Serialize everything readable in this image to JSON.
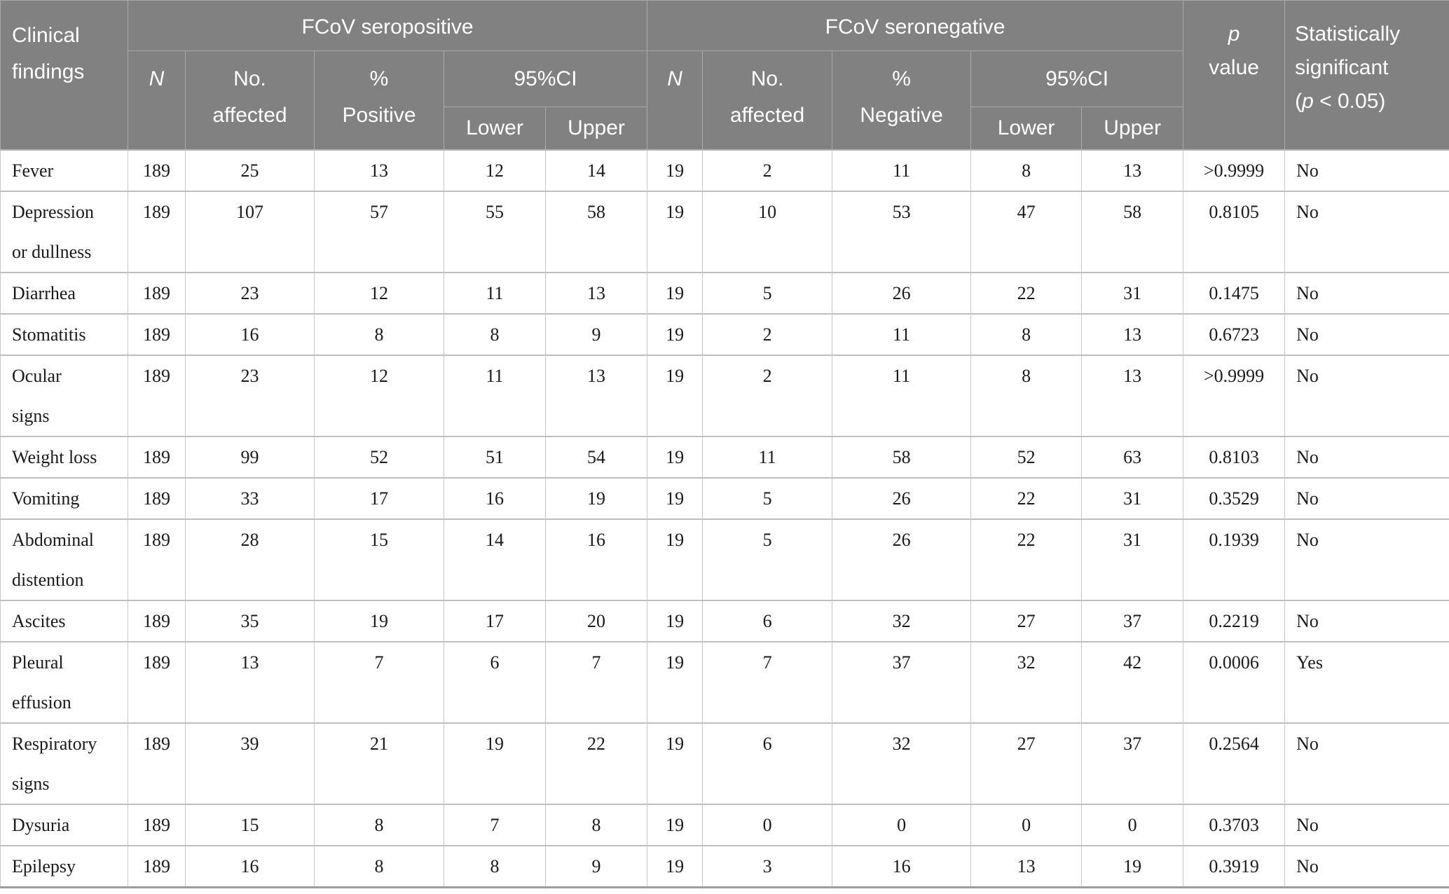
{
  "colors": {
    "header_bg": "#818181",
    "header_text": "#ffffff",
    "header_grid": "#a9a9a9",
    "body_text": "#1a1a1a",
    "body_grid": "#c9c9c9",
    "table_bottom_edge": "#9e9e9e"
  },
  "table": {
    "header": {
      "clinical_findings": "Clinical\nfindings",
      "fcov_seropositive": "FCoV seropositive",
      "fcov_seronegative": "FCoV seronegative",
      "n": "N",
      "no_affected": "No.\naffected",
      "pct_positive": "%\nPositive",
      "pct_negative": "%\nNegative",
      "ci": "95%CI",
      "lower": "Lower",
      "upper": "Upper",
      "p_italic": "p",
      "p_value_word": "value",
      "sig_line1": "Statistically",
      "sig_line2": "significant",
      "sig_open": "(",
      "sig_p": "p",
      "sig_rest": " < 0.05)"
    },
    "rows": [
      {
        "label": "Fever",
        "values": [
          "189",
          "25",
          "13",
          "12",
          "14",
          "19",
          "2",
          "11",
          "8",
          "13",
          ">0.9999",
          "No"
        ]
      },
      {
        "label": "Depression\nor dullness",
        "values": [
          "189",
          "107",
          "57",
          "55",
          "58",
          "19",
          "10",
          "53",
          "47",
          "58",
          "0.8105",
          "No"
        ]
      },
      {
        "label": "Diarrhea",
        "values": [
          "189",
          "23",
          "12",
          "11",
          "13",
          "19",
          "5",
          "26",
          "22",
          "31",
          "0.1475",
          "No"
        ]
      },
      {
        "label": "Stomatitis",
        "values": [
          "189",
          "16",
          "8",
          "8",
          "9",
          "19",
          "2",
          "11",
          "8",
          "13",
          "0.6723",
          "No"
        ]
      },
      {
        "label": "Ocular\nsigns",
        "values": [
          "189",
          "23",
          "12",
          "11",
          "13",
          "19",
          "2",
          "11",
          "8",
          "13",
          ">0.9999",
          "No"
        ]
      },
      {
        "label": "Weight loss",
        "values": [
          "189",
          "99",
          "52",
          "51",
          "54",
          "19",
          "11",
          "58",
          "52",
          "63",
          "0.8103",
          "No"
        ]
      },
      {
        "label": "Vomiting",
        "values": [
          "189",
          "33",
          "17",
          "16",
          "19",
          "19",
          "5",
          "26",
          "22",
          "31",
          "0.3529",
          "No"
        ]
      },
      {
        "label": "Abdominal\ndistention",
        "values": [
          "189",
          "28",
          "15",
          "14",
          "16",
          "19",
          "5",
          "26",
          "22",
          "31",
          "0.1939",
          "No"
        ]
      },
      {
        "label": "Ascites",
        "values": [
          "189",
          "35",
          "19",
          "17",
          "20",
          "19",
          "6",
          "32",
          "27",
          "37",
          "0.2219",
          "No"
        ]
      },
      {
        "label": "Pleural\neffusion",
        "values": [
          "189",
          "13",
          "7",
          "6",
          "7",
          "19",
          "7",
          "37",
          "32",
          "42",
          "0.0006",
          "Yes"
        ]
      },
      {
        "label": "Respiratory\nsigns",
        "values": [
          "189",
          "39",
          "21",
          "19",
          "22",
          "19",
          "6",
          "32",
          "27",
          "37",
          "0.2564",
          "No"
        ]
      },
      {
        "label": "Dysuria",
        "values": [
          "189",
          "15",
          "8",
          "7",
          "8",
          "19",
          "0",
          "0",
          "0",
          "0",
          "0.3703",
          "No"
        ]
      },
      {
        "label": "Epilepsy",
        "values": [
          "189",
          "16",
          "8",
          "8",
          "9",
          "19",
          "3",
          "16",
          "13",
          "19",
          "0.3919",
          "No"
        ]
      }
    ]
  }
}
